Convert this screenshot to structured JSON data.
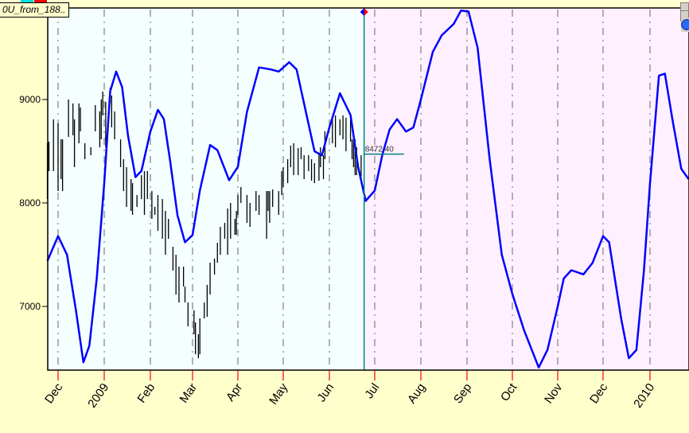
{
  "legend": {
    "label": "0U_from_188.."
  },
  "cursor": {
    "date": "2009-06-24",
    "value_label": "8472.40",
    "value": 8472.4
  },
  "colors": {
    "forecast_line": "#0000ff",
    "price_bars": "#000000",
    "cursor": "#008080",
    "history_bg": "#f5ffff",
    "forecast_bg": "#fff0ff",
    "axis_bg": "#ffffcc",
    "tick_marks": "#ff0000"
  },
  "icons": [
    "globe-icon",
    "scroll-up-icon",
    "scroll-down-icon",
    "cursor-marker-icon"
  ],
  "chart_data": {
    "type": "line",
    "title": "",
    "xlabel": "",
    "ylabel": "",
    "ylim": [
      6385,
      9885
    ],
    "xlim": [
      "2008-11-24",
      "2010-01-27"
    ],
    "grid": "vertical dashed at month starts",
    "y_ticks": [
      7000,
      8000,
      9000
    ],
    "x_tick_labels": [
      {
        "date": "2008-12-01",
        "label": "Dec"
      },
      {
        "date": "2009-01-01",
        "label": "2009"
      },
      {
        "date": "2009-02-01",
        "label": "Feb"
      },
      {
        "date": "2009-03-01",
        "label": "Mar"
      },
      {
        "date": "2009-04-01",
        "label": "Apr"
      },
      {
        "date": "2009-05-01",
        "label": "May"
      },
      {
        "date": "2009-06-01",
        "label": "Jun"
      },
      {
        "date": "2009-07-01",
        "label": "Jul"
      },
      {
        "date": "2009-08-01",
        "label": "Aug"
      },
      {
        "date": "2009-09-01",
        "label": "Sep"
      },
      {
        "date": "2009-10-01",
        "label": "Oct"
      },
      {
        "date": "2009-11-01",
        "label": "Nov"
      },
      {
        "date": "2009-12-01",
        "label": "Dec"
      },
      {
        "date": "2010-01-01",
        "label": "2010"
      }
    ],
    "series": [
      {
        "kind": "line",
        "color": "#0000ff",
        "points": [
          [
            "2008-11-24",
            7440
          ],
          [
            "2008-12-01",
            7680
          ],
          [
            "2008-12-07",
            7500
          ],
          [
            "2008-12-13",
            6960
          ],
          [
            "2008-12-18",
            6460
          ],
          [
            "2008-12-22",
            6620
          ],
          [
            "2008-12-27",
            7270
          ],
          [
            "2009-01-01",
            8190
          ],
          [
            "2009-01-05",
            9080
          ],
          [
            "2009-01-09",
            9270
          ],
          [
            "2009-01-13",
            9120
          ],
          [
            "2009-01-17",
            8650
          ],
          [
            "2009-01-22",
            8250
          ],
          [
            "2009-01-26",
            8310
          ],
          [
            "2009-02-01",
            8690
          ],
          [
            "2009-02-06",
            8900
          ],
          [
            "2009-02-10",
            8810
          ],
          [
            "2009-02-14",
            8420
          ],
          [
            "2009-02-19",
            7880
          ],
          [
            "2009-02-24",
            7620
          ],
          [
            "2009-03-01",
            7690
          ],
          [
            "2009-03-06",
            8120
          ],
          [
            "2009-03-13",
            8560
          ],
          [
            "2009-03-18",
            8510
          ],
          [
            "2009-03-26",
            8220
          ],
          [
            "2009-04-01",
            8350
          ],
          [
            "2009-04-07",
            8880
          ],
          [
            "2009-04-15",
            9310
          ],
          [
            "2009-04-23",
            9290
          ],
          [
            "2009-04-28",
            9270
          ],
          [
            "2009-05-05",
            9360
          ],
          [
            "2009-05-10",
            9290
          ],
          [
            "2009-05-15",
            8960
          ],
          [
            "2009-05-22",
            8500
          ],
          [
            "2009-05-27",
            8460
          ],
          [
            "2009-06-01",
            8730
          ],
          [
            "2009-06-08",
            9060
          ],
          [
            "2009-06-15",
            8850
          ],
          [
            "2009-06-20",
            8350
          ],
          [
            "2009-06-25",
            8020
          ],
          [
            "2009-07-01",
            8120
          ],
          [
            "2009-07-06",
            8460
          ],
          [
            "2009-07-11",
            8710
          ],
          [
            "2009-07-16",
            8810
          ],
          [
            "2009-07-22",
            8690
          ],
          [
            "2009-07-27",
            8730
          ],
          [
            "2009-08-01",
            9000
          ],
          [
            "2009-08-09",
            9460
          ],
          [
            "2009-08-15",
            9620
          ],
          [
            "2009-08-23",
            9730
          ],
          [
            "2009-08-28",
            9860
          ],
          [
            "2009-09-02",
            9850
          ],
          [
            "2009-09-08",
            9500
          ],
          [
            "2009-09-16",
            8420
          ],
          [
            "2009-09-24",
            7500
          ],
          [
            "2009-10-01",
            7120
          ],
          [
            "2009-10-09",
            6770
          ],
          [
            "2009-10-19",
            6410
          ],
          [
            "2009-10-25",
            6580
          ],
          [
            "2009-11-01",
            7000
          ],
          [
            "2009-11-05",
            7270
          ],
          [
            "2009-11-10",
            7350
          ],
          [
            "2009-11-18",
            7310
          ],
          [
            "2009-11-24",
            7420
          ],
          [
            "2009-12-01",
            7680
          ],
          [
            "2009-12-05",
            7620
          ],
          [
            "2009-12-13",
            6880
          ],
          [
            "2009-12-18",
            6500
          ],
          [
            "2009-12-23",
            6580
          ],
          [
            "2009-12-28",
            7350
          ],
          [
            "2010-01-01",
            8190
          ],
          [
            "2010-01-07",
            9230
          ],
          [
            "2010-01-11",
            9250
          ],
          [
            "2010-01-16",
            8810
          ],
          [
            "2010-01-22",
            8330
          ],
          [
            "2010-01-27",
            8230
          ]
        ]
      },
      {
        "kind": "hl_bars",
        "color": "#000000",
        "columns": [
          "date",
          "high",
          "low"
        ],
        "bars": [
          [
            "2008-11-24",
            8577,
            8038
          ],
          [
            "2008-11-25",
            8592,
            8308
          ],
          [
            "2008-11-28",
            8808,
            8308
          ],
          [
            "2008-12-01",
            8769,
            8115
          ],
          [
            "2008-12-03",
            8615,
            8231
          ],
          [
            "2008-12-04",
            8615,
            8115
          ],
          [
            "2008-12-08",
            9000,
            8638
          ],
          [
            "2008-12-11",
            8962,
            8654
          ],
          [
            "2008-12-12",
            8808,
            8346
          ],
          [
            "2008-12-15",
            8962,
            8577
          ],
          [
            "2008-12-16",
            8923,
            8692
          ],
          [
            "2008-12-19",
            8577,
            8423
          ],
          [
            "2008-12-23",
            8538,
            8462
          ],
          [
            "2008-12-26",
            8946,
            8692
          ],
          [
            "2008-12-29",
            8885,
            8538
          ],
          [
            "2008-12-30",
            9000,
            8615
          ],
          [
            "2008-12-31",
            9077,
            8846
          ],
          [
            "2009-01-02",
            8977,
            8538
          ],
          [
            "2009-01-05",
            9115,
            8962
          ],
          [
            "2009-01-06",
            9038,
            8731
          ],
          [
            "2009-01-08",
            8885,
            8615
          ],
          [
            "2009-01-12",
            8615,
            8346
          ],
          [
            "2009-01-14",
            8423,
            8115
          ],
          [
            "2009-01-16",
            8346,
            7962
          ],
          [
            "2009-01-19",
            8231,
            7923
          ],
          [
            "2009-01-20",
            8192,
            7885
          ],
          [
            "2009-01-23",
            8077,
            7962
          ],
          [
            "2009-01-26",
            8269,
            8038
          ],
          [
            "2009-01-28",
            8308,
            7885
          ],
          [
            "2009-01-30",
            8308,
            8038
          ],
          [
            "2009-02-02",
            8115,
            7846
          ],
          [
            "2009-02-04",
            7962,
            7885
          ],
          [
            "2009-02-06",
            8077,
            7731
          ],
          [
            "2009-02-09",
            8038,
            7654
          ],
          [
            "2009-02-11",
            7923,
            7500
          ],
          [
            "2009-02-13",
            7846,
            7654
          ],
          [
            "2009-02-16",
            7577,
            7346
          ],
          [
            "2009-02-18",
            7500,
            7115
          ],
          [
            "2009-02-20",
            7385,
            7038
          ],
          [
            "2009-02-23",
            7385,
            7192
          ],
          [
            "2009-02-24",
            7192,
            7038
          ],
          [
            "2009-02-26",
            7038,
            6808
          ],
          [
            "2009-03-02",
            6962,
            6731
          ],
          [
            "2009-03-03",
            6846,
            6538
          ],
          [
            "2009-03-05",
            6731,
            6500
          ],
          [
            "2009-03-06",
            6885,
            6538
          ],
          [
            "2009-03-09",
            7038,
            6885
          ],
          [
            "2009-03-11",
            7208,
            6900
          ],
          [
            "2009-03-13",
            7423,
            7115
          ],
          [
            "2009-03-16",
            7462,
            7308
          ],
          [
            "2009-03-18",
            7615,
            7423
          ],
          [
            "2009-03-20",
            7769,
            7500
          ],
          [
            "2009-03-23",
            7808,
            7654
          ],
          [
            "2009-03-25",
            7946,
            7500
          ],
          [
            "2009-03-27",
            8000,
            7654
          ],
          [
            "2009-03-30",
            7846,
            7692
          ],
          [
            "2009-03-31",
            7923,
            7692
          ],
          [
            "2009-04-01",
            8077,
            7885
          ],
          [
            "2009-04-03",
            8154,
            8000
          ],
          [
            "2009-04-07",
            8077,
            7808
          ],
          [
            "2009-04-09",
            8000,
            7769
          ],
          [
            "2009-04-13",
            8115,
            7923
          ],
          [
            "2009-04-15",
            8077,
            7885
          ],
          [
            "2009-04-20",
            8115,
            7654
          ],
          [
            "2009-04-21",
            8115,
            7923
          ],
          [
            "2009-04-22",
            8115,
            7808
          ],
          [
            "2009-04-24",
            8131,
            7962
          ],
          [
            "2009-04-28",
            8115,
            7885
          ],
          [
            "2009-04-30",
            8308,
            8077
          ],
          [
            "2009-05-01",
            8346,
            8154
          ],
          [
            "2009-05-04",
            8423,
            8192
          ],
          [
            "2009-05-06",
            8554,
            8346
          ],
          [
            "2009-05-08",
            8577,
            8269
          ],
          [
            "2009-05-11",
            8531,
            8269
          ],
          [
            "2009-05-13",
            8538,
            8423
          ],
          [
            "2009-05-15",
            8462,
            8231
          ],
          [
            "2009-05-18",
            8462,
            8308
          ],
          [
            "2009-05-20",
            8423,
            8215
          ],
          [
            "2009-05-22",
            8385,
            8192
          ],
          [
            "2009-05-25",
            8477,
            8215
          ],
          [
            "2009-05-26",
            8538,
            8346
          ],
          [
            "2009-05-28",
            8462,
            8231
          ],
          [
            "2009-05-29",
            8692,
            8423
          ],
          [
            "2009-06-03",
            8808,
            8577
          ],
          [
            "2009-06-05",
            8846,
            8538
          ],
          [
            "2009-06-08",
            8808,
            8654
          ],
          [
            "2009-06-10",
            8846,
            8615
          ],
          [
            "2009-06-12",
            8823,
            8500
          ],
          [
            "2009-06-15",
            8846,
            8592
          ],
          [
            "2009-06-16",
            8615,
            8423
          ],
          [
            "2009-06-17",
            8615,
            8346
          ],
          [
            "2009-06-18",
            8615,
            8269
          ],
          [
            "2009-06-19",
            8538,
            8269
          ],
          [
            "2009-06-22",
            8462,
            8254
          ]
        ]
      }
    ]
  }
}
